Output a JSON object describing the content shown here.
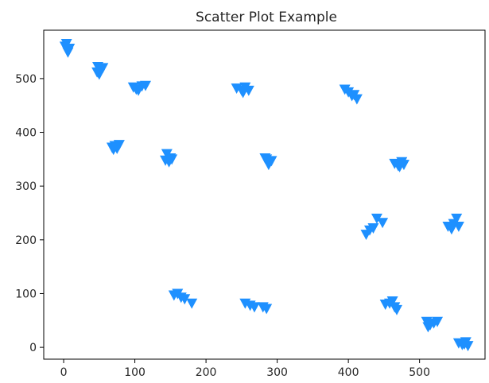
{
  "chart_data": {
    "type": "scatter",
    "title": "Scatter Plot Example",
    "xlabel": "",
    "ylabel": "",
    "xlim": [
      -28,
      592
    ],
    "ylim": [
      -22,
      590
    ],
    "xticks": [
      0,
      100,
      200,
      300,
      400,
      500
    ],
    "yticks": [
      0,
      100,
      200,
      300,
      400,
      500
    ],
    "marker": "triangle-down",
    "color": "#1E90FF",
    "grid": false,
    "series": [
      {
        "points": [
          [
            2,
            560
          ],
          [
            5,
            553
          ],
          [
            8,
            556
          ],
          [
            4,
            565
          ],
          [
            6,
            549
          ],
          [
            48,
            522
          ],
          [
            52,
            515
          ],
          [
            50,
            508
          ],
          [
            55,
            520
          ],
          [
            47,
            512
          ],
          [
            72,
            375
          ],
          [
            75,
            370
          ],
          [
            70,
            368
          ],
          [
            78,
            377
          ],
          [
            68,
            372
          ],
          [
            98,
            484
          ],
          [
            105,
            478
          ],
          [
            110,
            486
          ],
          [
            115,
            487
          ],
          [
            102,
            480
          ],
          [
            145,
            360
          ],
          [
            150,
            352
          ],
          [
            148,
            345
          ],
          [
            152,
            350
          ],
          [
            143,
            348
          ],
          [
            155,
            97
          ],
          [
            160,
            100
          ],
          [
            165,
            93
          ],
          [
            170,
            90
          ],
          [
            180,
            82
          ],
          [
            243,
            482
          ],
          [
            250,
            478
          ],
          [
            255,
            484
          ],
          [
            260,
            478
          ],
          [
            252,
            474
          ],
          [
            255,
            82
          ],
          [
            262,
            78
          ],
          [
            268,
            75
          ],
          [
            280,
            75
          ],
          [
            285,
            72
          ],
          [
            283,
            352
          ],
          [
            290,
            345
          ],
          [
            288,
            340
          ],
          [
            285,
            350
          ],
          [
            292,
            347
          ],
          [
            395,
            480
          ],
          [
            400,
            475
          ],
          [
            408,
            470
          ],
          [
            412,
            462
          ],
          [
            405,
            468
          ],
          [
            425,
            210
          ],
          [
            430,
            218
          ],
          [
            435,
            222
          ],
          [
            440,
            240
          ],
          [
            448,
            232
          ],
          [
            452,
            80
          ],
          [
            458,
            82
          ],
          [
            462,
            86
          ],
          [
            465,
            75
          ],
          [
            468,
            70
          ],
          [
            465,
            342
          ],
          [
            470,
            338
          ],
          [
            475,
            345
          ],
          [
            478,
            340
          ],
          [
            472,
            336
          ],
          [
            510,
            48
          ],
          [
            515,
            42
          ],
          [
            520,
            45
          ],
          [
            525,
            48
          ],
          [
            512,
            38
          ],
          [
            540,
            225
          ],
          [
            545,
            220
          ],
          [
            548,
            230
          ],
          [
            552,
            240
          ],
          [
            555,
            225
          ],
          [
            555,
            8
          ],
          [
            560,
            5
          ],
          [
            565,
            10
          ],
          [
            568,
            3
          ],
          [
            563,
            6
          ]
        ]
      }
    ]
  }
}
